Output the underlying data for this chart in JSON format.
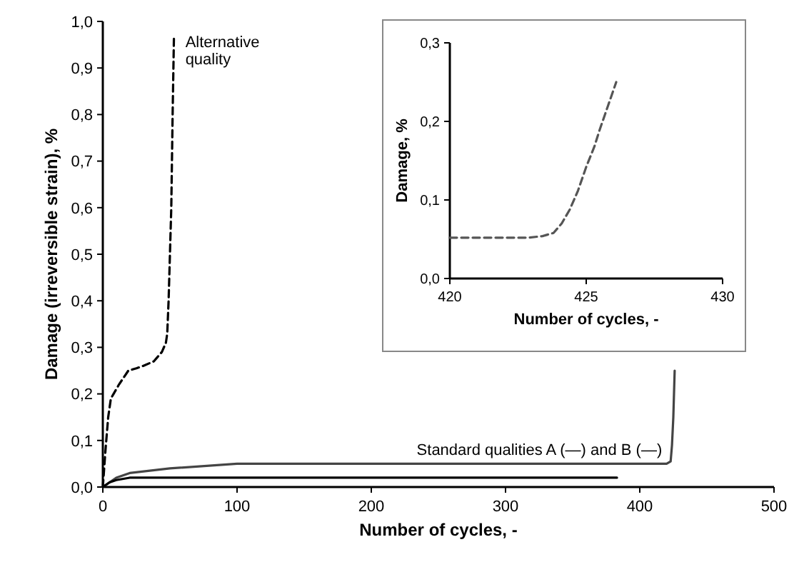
{
  "chart_data": [
    {
      "type": "line",
      "xlabel": "Number of cycles, -",
      "ylabel": "Damage (irreversible strain), %",
      "xlim": [
        0,
        500
      ],
      "xticks": [
        0,
        100,
        200,
        300,
        400,
        500
      ],
      "ylim": [
        0,
        1
      ],
      "yticks": [
        {
          "value": 0,
          "label": "0,0"
        },
        {
          "value": 0.1,
          "label": "0,1"
        },
        {
          "value": 0.2,
          "label": "0,2"
        },
        {
          "value": 0.3,
          "label": "0,3"
        },
        {
          "value": 0.4,
          "label": "0,4"
        },
        {
          "value": 0.5,
          "label": "0,5"
        },
        {
          "value": 0.6,
          "label": "0,6"
        },
        {
          "value": 0.7,
          "label": "0,7"
        },
        {
          "value": 0.8,
          "label": "0,8"
        },
        {
          "value": 0.9,
          "label": "0,9"
        },
        {
          "value": 1,
          "label": "1,0"
        }
      ],
      "grid": false,
      "series": [
        {
          "color": "#000000",
          "line_style": "dashed",
          "x": [
            0,
            2,
            4,
            6,
            8,
            12,
            19,
            25,
            30,
            38,
            44,
            47,
            48,
            49,
            50,
            51,
            52,
            53
          ],
          "values": [
            0,
            0.08,
            0.15,
            0.19,
            0.2,
            0.22,
            0.25,
            0.255,
            0.26,
            0.27,
            0.29,
            0.31,
            0.33,
            0.4,
            0.5,
            0.6,
            0.8,
            0.97
          ]
        },
        {
          "color": "#444444",
          "line_style": "solid",
          "x": [
            0,
            5,
            10,
            20,
            50,
            100,
            200,
            300,
            420,
            423,
            424,
            425,
            426
          ],
          "values": [
            0,
            0.01,
            0.02,
            0.03,
            0.04,
            0.05,
            0.05,
            0.05,
            0.05,
            0.055,
            0.09,
            0.15,
            0.25
          ]
        },
        {
          "color": "#000000",
          "line_style": "solid",
          "x": [
            0,
            5,
            10,
            20,
            50,
            100,
            200,
            300,
            383
          ],
          "values": [
            0,
            0.01,
            0.015,
            0.02,
            0.02,
            0.02,
            0.02,
            0.02,
            0.02
          ]
        }
      ],
      "annotations": [
        {
          "text": "Alternative quality",
          "x": 53,
          "y": 0.97
        },
        {
          "text": "Standard qualities A (—) and B (—)",
          "x": 423,
          "y": 0.05
        }
      ]
    },
    {
      "type": "line",
      "xlabel": "Number of cycles, -",
      "ylabel": "Damage, %",
      "xlim": [
        420,
        430
      ],
      "xticks": [
        420,
        425,
        430
      ],
      "ylim": [
        0,
        0.3
      ],
      "yticks": [
        {
          "value": 0,
          "label": "0,0"
        },
        {
          "value": 0.1,
          "label": "0,1"
        },
        {
          "value": 0.2,
          "label": "0,2"
        },
        {
          "value": 0.3,
          "label": "0,3"
        }
      ],
      "grid": false,
      "series": [
        {
          "color": "#555555",
          "line_style": "dashed",
          "x": [
            420,
            421,
            422,
            422.9,
            423.4,
            423.8,
            424.1,
            424.4,
            424.7,
            425,
            425.3,
            425.5,
            425.8,
            426.1
          ],
          "values": [
            0.052,
            0.052,
            0.052,
            0.052,
            0.054,
            0.058,
            0.07,
            0.088,
            0.112,
            0.142,
            0.168,
            0.19,
            0.22,
            0.25
          ]
        }
      ]
    }
  ]
}
